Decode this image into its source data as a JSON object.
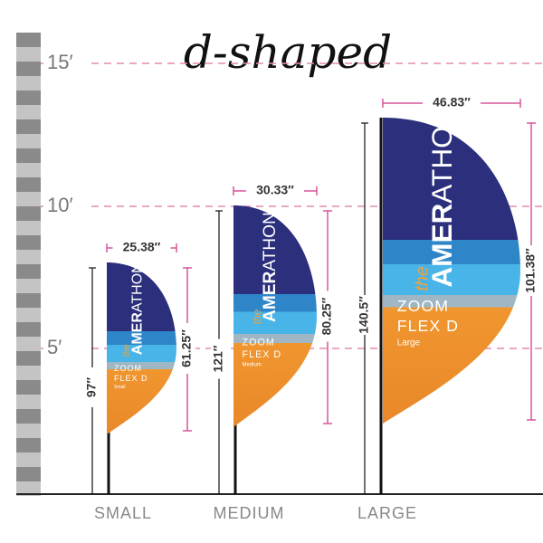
{
  "title": "d-shaped",
  "scale": [
    "15′",
    "10′",
    "5′"
  ],
  "flags": [
    {
      "size": "SMALL",
      "width": "25.38″",
      "pole_height": "97″",
      "flag_height": "61.25″",
      "brand_the": "the",
      "brand_bold": "AMER",
      "brand_light": "ATHON",
      "product_1": "ZOOM",
      "product_2": "FLEX D",
      "variant": "Small"
    },
    {
      "size": "MEDIUM",
      "width": "30.33″",
      "pole_height": "121″",
      "flag_height": "80.25″",
      "brand_the": "the",
      "brand_bold": "AMER",
      "brand_light": "ATHON",
      "product_1": "ZOOM",
      "product_2": "FLEX D",
      "variant": "Medium"
    },
    {
      "size": "LARGE",
      "width": "46.83″",
      "pole_height": "140.5″",
      "flag_height": "101.38″",
      "brand_the": "the",
      "brand_bold": "AMER",
      "brand_light": "ATHON",
      "product_1": "ZOOM",
      "product_2": "FLEX D",
      "variant": "Large"
    }
  ]
}
